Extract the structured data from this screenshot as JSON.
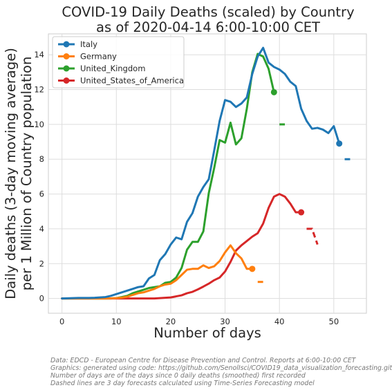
{
  "chart_data": {
    "type": "line",
    "title_lines": [
      "COVID-19 Daily Deaths (scaled) by Country",
      "as of 2020-04-14 6:00-10:00 CET"
    ],
    "xlabel": "Number of days",
    "ylabel_lines": [
      "Daily deaths (3-day moving average)",
      "per 1 Million of Country population"
    ],
    "xlim": [
      -2.5,
      56
    ],
    "ylim": [
      -0.85,
      15.2
    ],
    "xticks": [
      0,
      10,
      20,
      30,
      40,
      50
    ],
    "yticks": [
      0,
      2,
      4,
      6,
      8,
      10,
      12,
      14
    ],
    "grid": true,
    "legend_position": "top-left",
    "series": [
      {
        "name": "Italy",
        "color": "#1f77b4",
        "x": [
          0,
          1,
          2,
          3,
          4,
          5,
          6,
          7,
          8,
          9,
          10,
          11,
          12,
          13,
          14,
          15,
          16,
          17,
          18,
          19,
          20,
          21,
          22,
          23,
          24,
          25,
          26,
          27,
          28,
          29,
          30,
          31,
          32,
          33,
          34,
          35,
          36,
          37,
          38,
          39,
          40,
          41,
          42,
          43,
          44,
          45,
          46,
          47,
          48,
          49,
          50,
          51
        ],
        "y": [
          0,
          0.01,
          0.02,
          0.03,
          0.03,
          0.03,
          0.04,
          0.06,
          0.08,
          0.15,
          0.25,
          0.35,
          0.45,
          0.55,
          0.65,
          0.7,
          1.15,
          1.35,
          2.2,
          2.55,
          3.1,
          3.5,
          3.4,
          4.4,
          4.9,
          5.85,
          6.4,
          6.85,
          8.5,
          10.2,
          11.4,
          11.3,
          11,
          11.2,
          11.55,
          12.9,
          13.9,
          14.4,
          13.55,
          13.3,
          13.15,
          12.9,
          12.45,
          12.2,
          10.9,
          10.2,
          9.75,
          9.8,
          9.7,
          9.5,
          9.9,
          8.9
        ],
        "forecast_x": [
          52,
          53
        ],
        "forecast_y": [
          8,
          8
        ]
      },
      {
        "name": "Germany",
        "color": "#ff7f0e",
        "x": [
          0,
          1,
          2,
          3,
          4,
          5,
          6,
          7,
          8,
          9,
          10,
          11,
          12,
          13,
          14,
          15,
          16,
          17,
          18,
          19,
          20,
          21,
          22,
          23,
          24,
          25,
          26,
          27,
          28,
          29,
          30,
          31,
          32,
          33,
          34,
          35
        ],
        "y": [
          0,
          0,
          0,
          0,
          0,
          0,
          0,
          0,
          0,
          0.01,
          0.02,
          0.05,
          0.1,
          0.2,
          0.3,
          0.35,
          0.45,
          0.55,
          0.7,
          0.8,
          0.85,
          1.05,
          1.35,
          1.65,
          1.7,
          1.7,
          1.9,
          1.75,
          1.85,
          2.15,
          2.65,
          3.05,
          2.6,
          2.3,
          1.7,
          1.7
        ],
        "forecast_x": [
          36,
          37
        ],
        "forecast_y": [
          0.95,
          0.95
        ]
      },
      {
        "name": "United_Kingdom",
        "color": "#2ca02c",
        "x": [
          0,
          1,
          2,
          3,
          4,
          5,
          6,
          7,
          8,
          9,
          10,
          11,
          12,
          13,
          14,
          15,
          16,
          17,
          18,
          19,
          20,
          21,
          22,
          23,
          24,
          25,
          26,
          27,
          28,
          29,
          30,
          31,
          32,
          33,
          34,
          35,
          36,
          37,
          38,
          39
        ],
        "y": [
          0,
          0,
          0,
          0,
          0,
          0,
          0,
          0,
          0,
          0,
          0.02,
          0.08,
          0.15,
          0.3,
          0.4,
          0.5,
          0.6,
          0.65,
          0.7,
          0.9,
          0.95,
          1.2,
          1.75,
          2.8,
          3.25,
          3.25,
          3.85,
          6.05,
          7.5,
          9.1,
          8.95,
          10.1,
          8.85,
          9.2,
          10.9,
          13,
          14.05,
          13.9,
          13.2,
          11.85
        ],
        "forecast_x": [
          40,
          41
        ],
        "forecast_y": [
          10,
          10
        ]
      },
      {
        "name": "United_States_of_America",
        "color": "#d62728",
        "x": [
          0,
          1,
          2,
          3,
          4,
          5,
          6,
          7,
          8,
          9,
          10,
          11,
          12,
          13,
          14,
          15,
          16,
          17,
          18,
          19,
          20,
          21,
          22,
          23,
          24,
          25,
          26,
          27,
          28,
          29,
          30,
          31,
          32,
          33,
          34,
          35,
          36,
          37,
          38,
          39,
          40,
          41,
          42,
          43,
          44
        ],
        "y": [
          0,
          0,
          0,
          0,
          0,
          0,
          0,
          0,
          0,
          0,
          0,
          0,
          0,
          0,
          0,
          0,
          0,
          0,
          0.02,
          0.04,
          0.06,
          0.12,
          0.18,
          0.3,
          0.38,
          0.52,
          0.68,
          0.85,
          1.05,
          1.2,
          1.55,
          2.1,
          2.75,
          3.05,
          3.3,
          3.55,
          3.75,
          4.3,
          5.2,
          5.85,
          6,
          5.85,
          5.45,
          4.95,
          4.95
        ],
        "forecast_x": [
          45,
          46,
          47
        ],
        "forecast_y": [
          4,
          4,
          3.1
        ]
      }
    ]
  },
  "footnotes": [
    "Data: EDCD - European Centre for Disease Prevention and Control. Reports at 6:00-10:00 CET",
    "Graphics: generated using code: https://github.com/SenolIsci/COVID19_data_visualization_forecasting.git",
    "Number of days are of the days since 0 daily deaths (smoothed) first recorded",
    "Dashed lines are 3 day forecasts calculated using Time-Series Forecasting model"
  ]
}
